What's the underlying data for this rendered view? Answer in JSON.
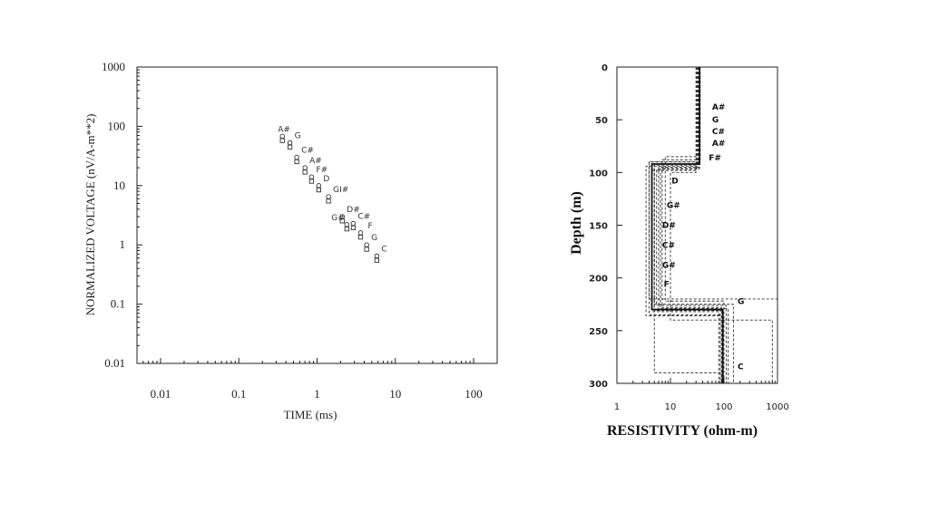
{
  "chart_data": [
    {
      "type": "scatter",
      "xlabel": "TIME (ms)",
      "ylabel": "NORMALIZED VOLTAGE (nV/A-m**2)",
      "xscale": "log",
      "yscale": "log",
      "xlim": [
        0.005,
        200
      ],
      "ylim": [
        0.01,
        1000
      ],
      "x_tick_labels": [
        "0.01",
        "0.1",
        "1",
        "10",
        "100"
      ],
      "y_tick_labels": [
        "1000",
        "100",
        "10",
        "1",
        "0.1",
        "0.01"
      ],
      "points": [
        {
          "x": 0.36,
          "y": 68,
          "label": "A#"
        },
        {
          "x": 0.45,
          "y": 53,
          "label": "G"
        },
        {
          "x": 0.55,
          "y": 30,
          "label": "C#"
        },
        {
          "x": 0.7,
          "y": 20,
          "label": "A#"
        },
        {
          "x": 0.85,
          "y": 14,
          "label": "F#"
        },
        {
          "x": 1.05,
          "y": 10,
          "label": "D"
        },
        {
          "x": 1.4,
          "y": 6.5,
          "label": "GI#"
        },
        {
          "x": 2.1,
          "y": 3.0,
          "label": "D#"
        },
        {
          "x": 2.9,
          "y": 2.3,
          "label": "C#"
        },
        {
          "x": 2.4,
          "y": 2.2,
          "label": "G#"
        },
        {
          "x": 3.6,
          "y": 1.6,
          "label": "F"
        },
        {
          "x": 4.3,
          "y": 1.0,
          "label": "G"
        },
        {
          "x": 5.8,
          "y": 0.65,
          "label": "C"
        }
      ],
      "grid": false
    },
    {
      "type": "line",
      "xlabel": "RESISTIVITY (ohm-m)",
      "ylabel": "Depth (m)",
      "xscale": "log",
      "xlim": [
        1,
        1000
      ],
      "ylim": [
        0,
        300
      ],
      "y_inverted": true,
      "x_tick_labels": [
        "1",
        "10",
        "100",
        "1000"
      ],
      "y_tick_labels": [
        "0",
        "50",
        "100",
        "150",
        "200",
        "250",
        "300"
      ],
      "series": [
        {
          "name": "A#",
          "steps": [
            [
              34,
              0,
              88
            ],
            [
              7,
              88,
              228
            ],
            [
              90,
              228,
              300
            ]
          ]
        },
        {
          "name": "G",
          "steps": [
            [
              33,
              0,
              92
            ],
            [
              5,
              92,
              225
            ],
            [
              150,
              225,
              300
            ]
          ]
        },
        {
          "name": "C#",
          "steps": [
            [
              35,
              0,
              95
            ],
            [
              6,
              95,
              230
            ],
            [
              85,
              230,
              300
            ]
          ]
        },
        {
          "name": "A#",
          "steps": [
            [
              36,
              0,
              90
            ],
            [
              4,
              90,
              235
            ],
            [
              95,
              235,
              300
            ]
          ]
        },
        {
          "name": "F#",
          "steps": [
            [
              32,
              0,
              85
            ],
            [
              8,
              85,
              222
            ],
            [
              100,
              222,
              300
            ]
          ]
        },
        {
          "name": "D",
          "steps": [
            [
              30,
              0,
              100
            ],
            [
              10,
              100,
              240
            ],
            [
              800,
              240,
              300
            ]
          ]
        },
        {
          "name": "G#",
          "steps": [
            [
              31,
              0,
              98
            ],
            [
              4.5,
              98,
              232
            ],
            [
              80,
              232,
              300
            ]
          ]
        },
        {
          "name": "D#",
          "steps": [
            [
              34,
              0,
              97
            ],
            [
              5.5,
              97,
              226
            ],
            [
              110,
              226,
              300
            ]
          ]
        },
        {
          "name": "C#",
          "steps": [
            [
              33,
              0,
              94
            ],
            [
              3.5,
              94,
              236
            ],
            [
              90,
              236,
              300
            ]
          ]
        },
        {
          "name": "G#",
          "steps": [
            [
              35,
              0,
              96
            ],
            [
              6.5,
              96,
              229
            ],
            [
              120,
              229,
              300
            ]
          ]
        },
        {
          "name": "F",
          "steps": [
            [
              33,
              0,
              92
            ],
            [
              5,
              92,
              231
            ],
            [
              95,
              231,
              300
            ]
          ]
        },
        {
          "name": "G",
          "steps": [
            [
              34,
              0,
              90
            ],
            [
              4,
              90,
              220
            ],
            [
              1000,
              220,
              300
            ]
          ]
        },
        {
          "name": "C",
          "steps": [
            [
              32,
              0,
              93
            ],
            [
              5,
              93,
              290
            ],
            [
              90,
              290,
              300
            ]
          ]
        }
      ],
      "mean_model": [
        [
          35,
          0,
          92
        ],
        [
          4.5,
          92,
          230
        ],
        [
          95,
          230,
          300
        ]
      ],
      "annotations": [
        {
          "label": "A#",
          "resistivity": 60,
          "depth": 38
        },
        {
          "label": "G",
          "resistivity": 60,
          "depth": 50
        },
        {
          "label": "C#",
          "resistivity": 60,
          "depth": 61
        },
        {
          "label": "A#",
          "resistivity": 60,
          "depth": 72
        },
        {
          "label": "F#",
          "resistivity": 52,
          "depth": 86
        },
        {
          "label": "D",
          "resistivity": 10.5,
          "depth": 108
        },
        {
          "label": "G#",
          "resistivity": 8.5,
          "depth": 131
        },
        {
          "label": "D#",
          "resistivity": 7.0,
          "depth": 150
        },
        {
          "label": "C#",
          "resistivity": 7.0,
          "depth": 169
        },
        {
          "label": "G#",
          "resistivity": 7.0,
          "depth": 188
        },
        {
          "label": "F",
          "resistivity": 7.5,
          "depth": 206
        },
        {
          "label": "G",
          "resistivity": 180,
          "depth": 222
        },
        {
          "label": "C",
          "resistivity": 180,
          "depth": 284
        }
      ],
      "grid": false
    }
  ]
}
